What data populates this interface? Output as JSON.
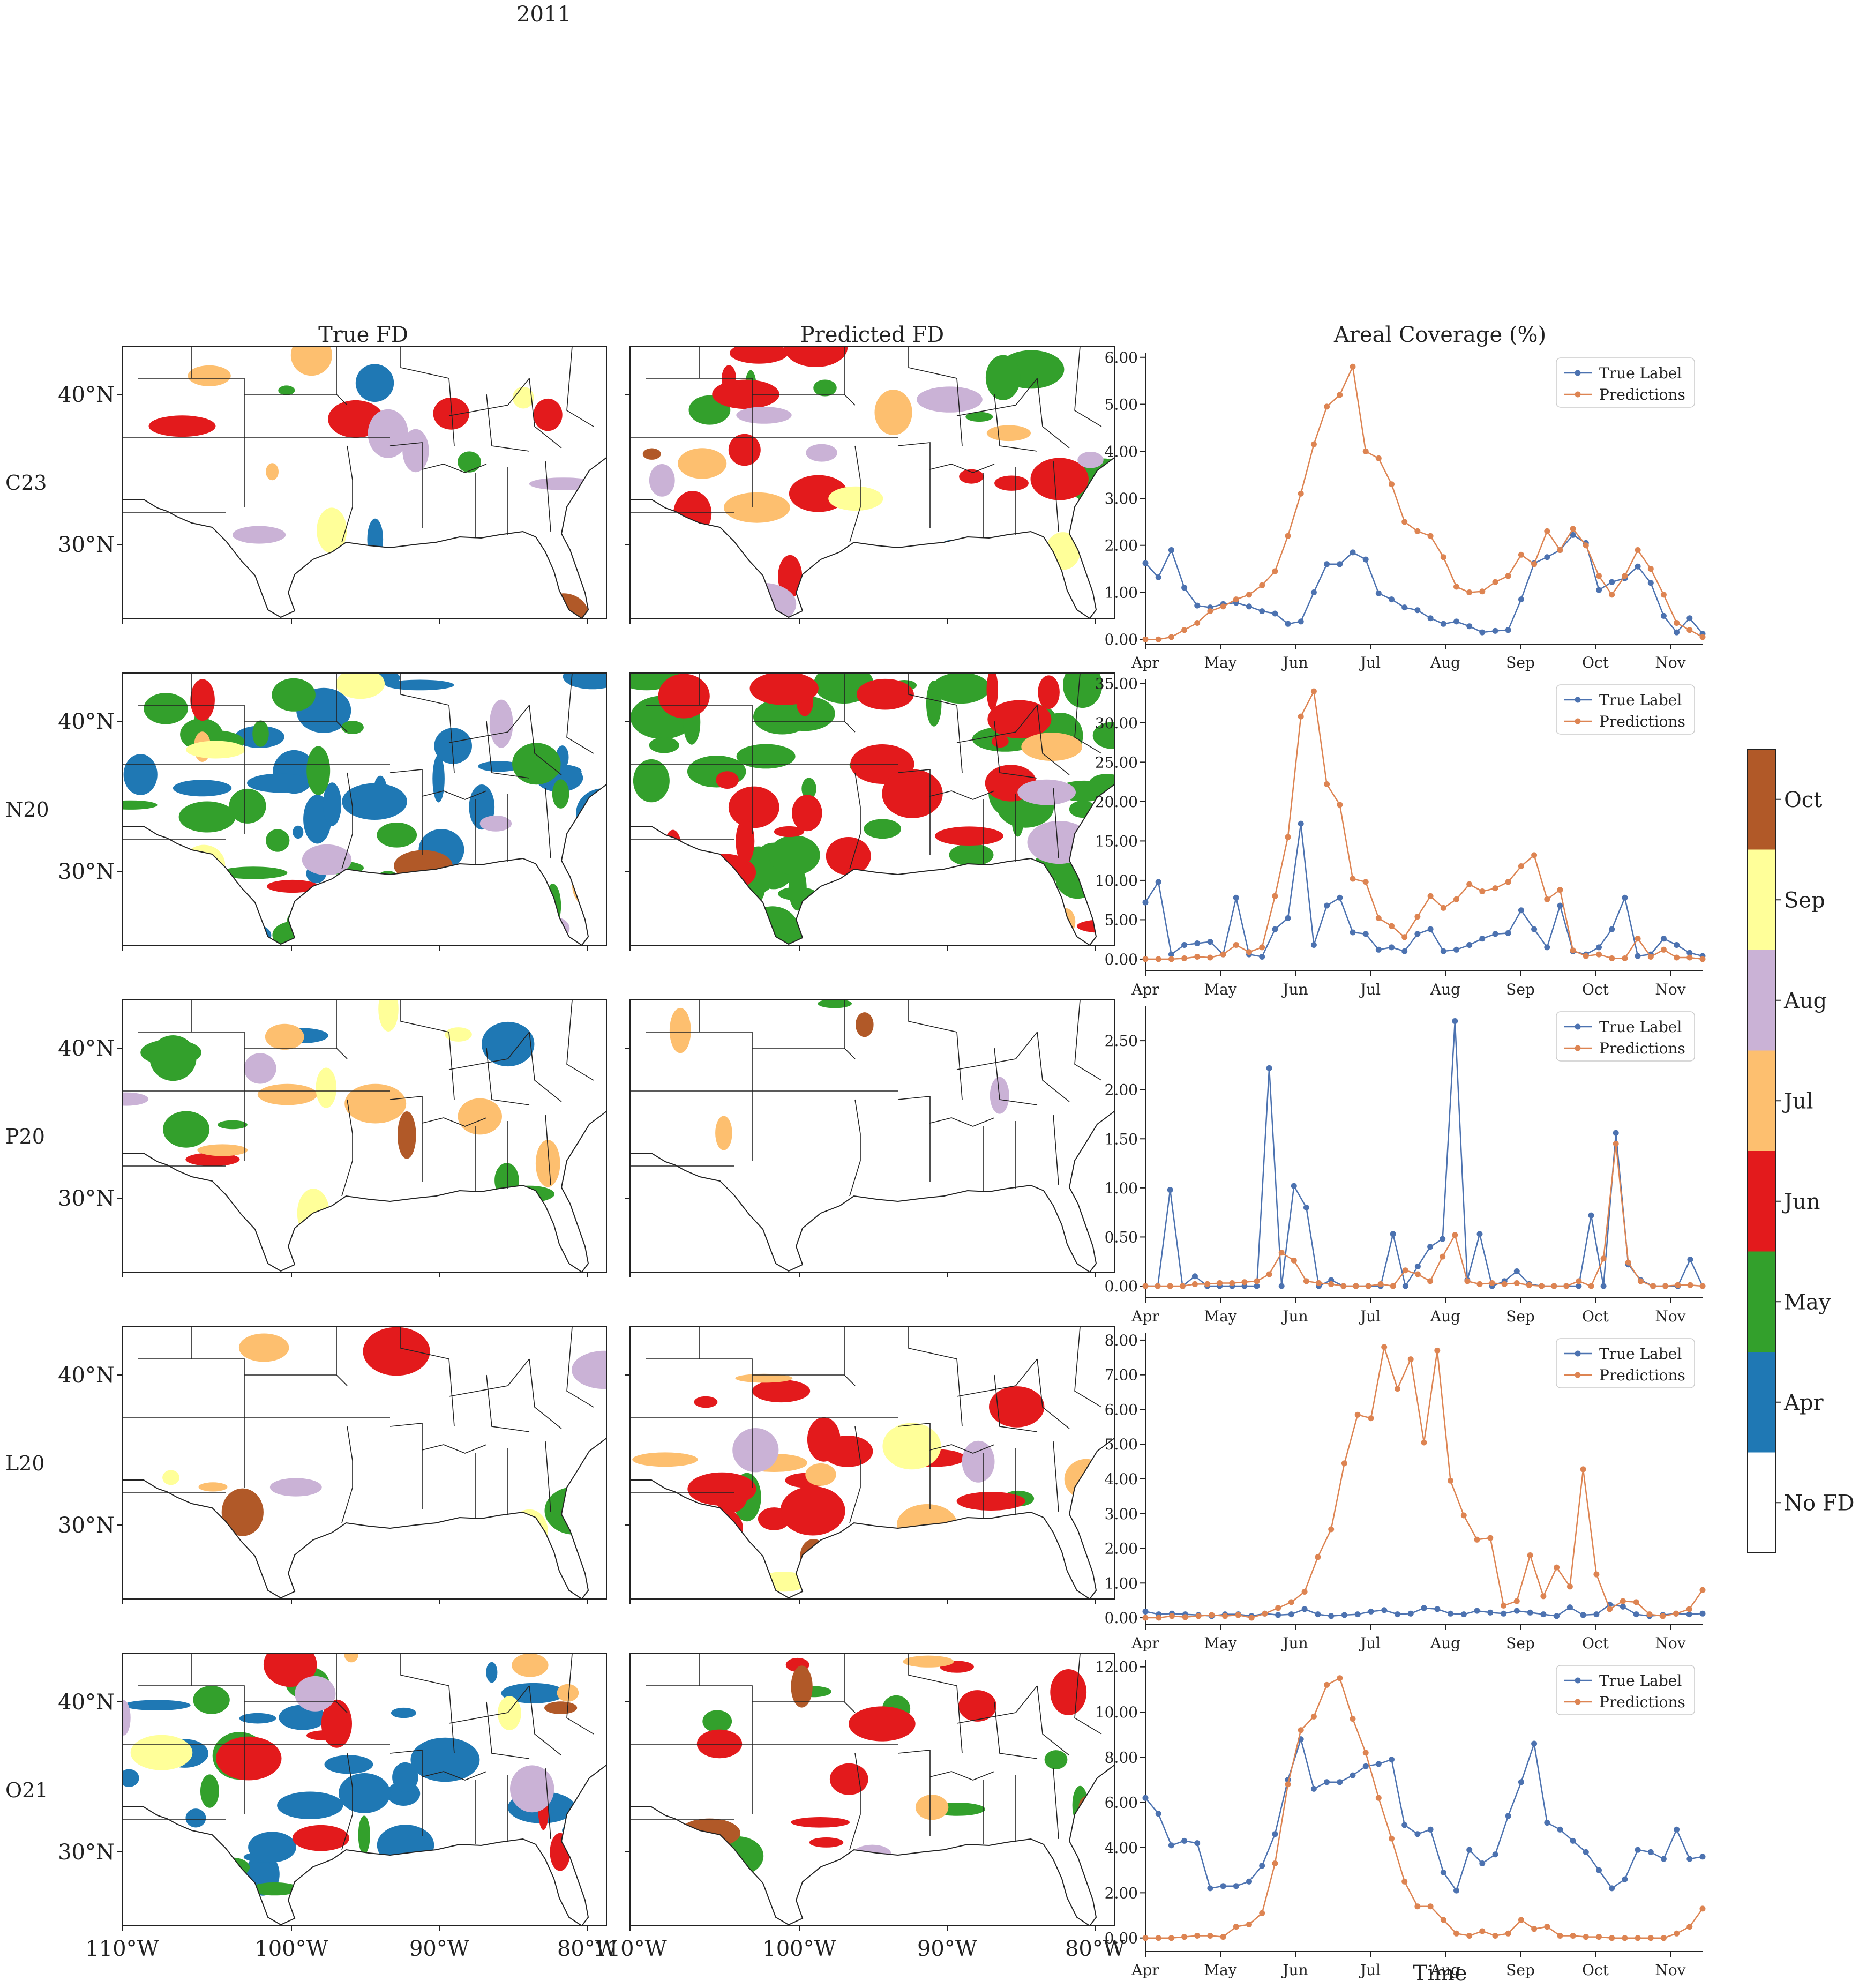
{
  "figure": {
    "year": "2011",
    "col_titles": [
      "True FD",
      "Predicted FD",
      "Areal Coverage (%)"
    ],
    "row_labels": [
      "C23",
      "N20",
      "P20",
      "L20",
      "O21"
    ],
    "lat_labels": [
      "40°N",
      "30°N"
    ],
    "lon_labels": [
      "110°W",
      "100°W",
      "90°W",
      "80°W"
    ],
    "time_xlabel": "Time",
    "month_labels": [
      "Apr",
      "May",
      "Jun",
      "Jul",
      "Aug",
      "Sep",
      "Oct",
      "Nov"
    ],
    "legend_labels": [
      "True Label",
      "Predictions"
    ],
    "colors": {
      "true_label": "#4c72b0",
      "predictions": "#dd8452"
    }
  },
  "colorbar": {
    "labels": [
      "No FD",
      "Apr",
      "May",
      "Jun",
      "Jul",
      "Aug",
      "Sep",
      "Oct"
    ],
    "colors": [
      "#ffffff",
      "#1f78b4",
      "#33a02c",
      "#e31a1c",
      "#fdbf6f",
      "#cab2d6",
      "#ffff99",
      "#b15928"
    ]
  },
  "map_fill": {
    "C23": {
      "true": {
        "Apr": 4,
        "May": 2,
        "Jun": 6,
        "Jul": 3,
        "Aug": 4,
        "Sep": 3,
        "Oct": 1
      },
      "pred": {
        "Apr": 1,
        "May": 8,
        "Jun": 16,
        "Jul": 5,
        "Aug": 6,
        "Sep": 2,
        "Oct": 1
      }
    },
    "N20": {
      "true": {
        "Apr": 32,
        "May": 28,
        "Jun": 3,
        "Jul": 3,
        "Aug": 4,
        "Sep": 4,
        "Oct": 1
      },
      "pred": {
        "Apr": 0,
        "May": 50,
        "Jun": 30,
        "Jul": 3,
        "Aug": 2,
        "Sep": 0,
        "Oct": 0
      }
    },
    "P20": {
      "true": {
        "Apr": 2,
        "May": 8,
        "Jun": 1,
        "Jul": 6,
        "Aug": 3,
        "Sep": 4,
        "Oct": 1
      },
      "pred": {
        "Apr": 0,
        "May": 1,
        "Jun": 0,
        "Jul": 2,
        "Aug": 1,
        "Sep": 0,
        "Oct": 3
      }
    },
    "L20": {
      "true": {
        "Apr": 1,
        "May": 1,
        "Jun": 1,
        "Jul": 3,
        "Aug": 3,
        "Sep": 2,
        "Oct": 1
      },
      "pred": {
        "Apr": 0,
        "May": 2,
        "Jun": 14,
        "Jul": 7,
        "Aug": 2,
        "Sep": 3,
        "Oct": 1
      }
    },
    "O21": {
      "true": {
        "Apr": 28,
        "May": 8,
        "Jun": 9,
        "Jul": 5,
        "Aug": 3,
        "Sep": 4,
        "Oct": 2
      },
      "pred": {
        "Apr": 0,
        "May": 8,
        "Jun": 10,
        "Jul": 2,
        "Aug": 2,
        "Sep": 0,
        "Oct": 3
      }
    }
  },
  "chart_data": [
    {
      "type": "line",
      "row": "C23",
      "title": "Areal Coverage (%)",
      "xlabel": "",
      "ylabel": "",
      "ylim": [
        -0.1,
        6.1
      ],
      "yticks": [
        0,
        1,
        2,
        3,
        4,
        5,
        6
      ],
      "ytick_labels": [
        "0.00",
        "1.00",
        "2.00",
        "3.00",
        "4.00",
        "5.00",
        "6.00"
      ],
      "x_range": [
        0,
        52
      ],
      "xticks": [
        0,
        7,
        14,
        21,
        28,
        35,
        42,
        49
      ],
      "xtick_labels": [
        "Apr",
        "May",
        "Jun",
        "Jul",
        "Aug",
        "Sep",
        "Oct",
        "Nov"
      ],
      "legend_position": "upper right",
      "series": [
        {
          "name": "True Label",
          "values": [
            1.62,
            1.32,
            1.9,
            1.1,
            0.72,
            0.68,
            0.75,
            0.78,
            0.7,
            0.6,
            0.55,
            0.33,
            0.38,
            1.0,
            1.6,
            1.6,
            1.85,
            1.7,
            0.98,
            0.85,
            0.68,
            0.62,
            0.45,
            0.33,
            0.38,
            0.28,
            0.15,
            0.18,
            0.2,
            0.85,
            1.62,
            1.75,
            1.9,
            2.22,
            2.05,
            1.05,
            1.22,
            1.3,
            1.55,
            1.2,
            0.5,
            0.15,
            0.45,
            0.12
          ]
        },
        {
          "name": "Predictions",
          "values": [
            0.0,
            0.0,
            0.05,
            0.2,
            0.35,
            0.6,
            0.7,
            0.85,
            0.95,
            1.15,
            1.45,
            2.2,
            3.1,
            4.15,
            4.95,
            5.2,
            5.8,
            4.0,
            3.85,
            3.3,
            2.5,
            2.3,
            2.2,
            1.75,
            1.12,
            1.0,
            1.02,
            1.22,
            1.35,
            1.8,
            1.6,
            2.3,
            1.9,
            2.35,
            2.0,
            1.35,
            0.95,
            1.35,
            1.9,
            1.5,
            0.95,
            0.35,
            0.2,
            0.05
          ]
        }
      ]
    },
    {
      "type": "line",
      "row": "N20",
      "title": "",
      "xlabel": "",
      "ylabel": "",
      "ylim": [
        -1.5,
        35.5
      ],
      "yticks": [
        0,
        5,
        10,
        15,
        20,
        25,
        30,
        35
      ],
      "ytick_labels": [
        "0.00",
        "5.00",
        "10.00",
        "15.00",
        "20.00",
        "25.00",
        "30.00",
        "35.00"
      ],
      "x_range": [
        0,
        52
      ],
      "xticks": [
        0,
        7,
        14,
        21,
        28,
        35,
        42,
        49
      ],
      "xtick_labels": [
        "Apr",
        "May",
        "Jun",
        "Jul",
        "Aug",
        "Sep",
        "Oct",
        "Nov"
      ],
      "legend_position": "upper right",
      "series": [
        {
          "name": "True Label",
          "values": [
            7.2,
            9.8,
            0.6,
            1.8,
            2.0,
            2.2,
            0.6,
            7.8,
            0.6,
            0.3,
            3.8,
            5.2,
            17.2,
            1.8,
            6.8,
            7.8,
            3.4,
            3.2,
            1.2,
            1.5,
            1.0,
            3.2,
            3.8,
            1.0,
            1.2,
            1.8,
            2.6,
            3.2,
            3.3,
            6.2,
            3.8,
            1.5,
            6.8,
            1.0,
            0.6,
            1.5,
            3.8,
            7.8,
            0.4,
            0.6,
            2.6,
            1.8,
            0.8,
            0.4
          ]
        },
        {
          "name": "Predictions",
          "values": [
            0.0,
            0.0,
            0.0,
            0.1,
            0.3,
            0.2,
            0.6,
            1.8,
            0.9,
            1.5,
            8.0,
            15.5,
            30.8,
            34.0,
            22.2,
            19.6,
            10.2,
            9.8,
            5.2,
            4.2,
            2.8,
            5.4,
            8.0,
            6.5,
            7.6,
            9.5,
            8.6,
            9.0,
            9.8,
            11.8,
            13.2,
            7.6,
            8.8,
            1.1,
            0.4,
            0.6,
            0.1,
            0.1,
            2.6,
            0.3,
            1.2,
            0.2,
            0.2,
            0.0
          ]
        }
      ]
    },
    {
      "type": "line",
      "row": "P20",
      "title": "",
      "xlabel": "",
      "ylabel": "",
      "ylim": [
        -0.12,
        2.85
      ],
      "yticks": [
        0,
        0.5,
        1,
        1.5,
        2,
        2.5
      ],
      "ytick_labels": [
        "0.00",
        "0.50",
        "1.00",
        "1.50",
        "2.00",
        "2.50"
      ],
      "x_range": [
        0,
        52
      ],
      "xticks": [
        0,
        7,
        14,
        21,
        28,
        35,
        42,
        49
      ],
      "xtick_labels": [
        "Apr",
        "May",
        "Jun",
        "Jul",
        "Aug",
        "Sep",
        "Oct",
        "Nov"
      ],
      "legend_position": "upper right",
      "series": [
        {
          "name": "True Label",
          "values": [
            0.0,
            0.0,
            0.98,
            0.0,
            0.1,
            0.0,
            0.0,
            0.0,
            0.0,
            0.0,
            2.22,
            0.0,
            1.02,
            0.8,
            0.0,
            0.06,
            0.0,
            0.0,
            0.0,
            0.0,
            0.53,
            0.0,
            0.2,
            0.4,
            0.48,
            2.7,
            0.06,
            0.53,
            0.0,
            0.05,
            0.15,
            0.02,
            0.0,
            0.0,
            0.0,
            0.0,
            0.72,
            0.0,
            1.56,
            0.22,
            0.06,
            0.0,
            0.0,
            0.0,
            0.27,
            0.0
          ]
        },
        {
          "name": "Predictions",
          "values": [
            0.0,
            0.0,
            0.0,
            0.0,
            0.02,
            0.02,
            0.03,
            0.03,
            0.04,
            0.05,
            0.12,
            0.34,
            0.26,
            0.05,
            0.03,
            0.02,
            0.0,
            0.0,
            0.0,
            0.02,
            0.0,
            0.16,
            0.12,
            0.05,
            0.3,
            0.52,
            0.05,
            0.02,
            0.03,
            0.02,
            0.03,
            0.01,
            0.0,
            0.0,
            0.0,
            0.05,
            0.0,
            0.28,
            1.45,
            0.24,
            0.05,
            0.0,
            0.0,
            0.01,
            0.01,
            0.0
          ]
        }
      ]
    },
    {
      "type": "line",
      "row": "L20",
      "title": "",
      "xlabel": "",
      "ylabel": "",
      "ylim": [
        -0.2,
        8.2
      ],
      "yticks": [
        0,
        1,
        2,
        3,
        4,
        5,
        6,
        7,
        8
      ],
      "ytick_labels": [
        "0.00",
        "1.00",
        "2.00",
        "3.00",
        "4.00",
        "5.00",
        "6.00",
        "7.00",
        "8.00"
      ],
      "x_range": [
        0,
        52
      ],
      "xticks": [
        0,
        7,
        14,
        21,
        28,
        35,
        42,
        49
      ],
      "xtick_labels": [
        "Apr",
        "May",
        "Jun",
        "Jul",
        "Aug",
        "Sep",
        "Oct",
        "Nov"
      ],
      "legend_position": "upper right",
      "series": [
        {
          "name": "True Label",
          "values": [
            0.18,
            0.1,
            0.12,
            0.1,
            0.08,
            0.05,
            0.1,
            0.1,
            0.05,
            0.12,
            0.08,
            0.1,
            0.25,
            0.1,
            0.05,
            0.08,
            0.1,
            0.18,
            0.22,
            0.1,
            0.12,
            0.28,
            0.25,
            0.12,
            0.1,
            0.2,
            0.15,
            0.12,
            0.2,
            0.15,
            0.1,
            0.05,
            0.3,
            0.08,
            0.1,
            0.38,
            0.32,
            0.1,
            0.05,
            0.08,
            0.12,
            0.1,
            0.12
          ]
        },
        {
          "name": "Predictions",
          "values": [
            0.0,
            0.0,
            0.05,
            0.02,
            0.05,
            0.08,
            0.05,
            0.08,
            0.0,
            0.12,
            0.28,
            0.45,
            0.75,
            1.75,
            2.55,
            4.45,
            5.85,
            5.75,
            7.8,
            6.6,
            7.45,
            5.05,
            7.7,
            3.95,
            2.95,
            2.25,
            2.3,
            0.35,
            0.48,
            1.8,
            0.62,
            1.45,
            0.9,
            4.28,
            1.25,
            0.25,
            0.48,
            0.45,
            0.1,
            0.05,
            0.12,
            0.25,
            0.8
          ]
        }
      ]
    },
    {
      "type": "line",
      "row": "O21",
      "title": "",
      "xlabel": "Time",
      "ylabel": "",
      "ylim": [
        -0.6,
        12.3
      ],
      "yticks": [
        0,
        2,
        4,
        6,
        8,
        10,
        12
      ],
      "ytick_labels": [
        "0.00",
        "2.00",
        "4.00",
        "6.00",
        "8.00",
        "10.00",
        "12.00"
      ],
      "x_range": [
        0,
        52
      ],
      "xticks": [
        0,
        7,
        14,
        21,
        28,
        35,
        42,
        49
      ],
      "xtick_labels": [
        "Apr",
        "May",
        "Jun",
        "Jul",
        "Aug",
        "Sep",
        "Oct",
        "Nov"
      ],
      "legend_position": "upper right",
      "series": [
        {
          "name": "True Label",
          "values": [
            6.2,
            5.5,
            4.1,
            4.3,
            4.2,
            2.2,
            2.3,
            2.3,
            2.5,
            3.2,
            4.6,
            7.0,
            8.8,
            6.6,
            6.9,
            6.9,
            7.2,
            7.6,
            7.7,
            7.9,
            5.0,
            4.6,
            4.8,
            2.9,
            2.1,
            3.9,
            3.3,
            3.7,
            5.4,
            6.9,
            8.6,
            5.1,
            4.8,
            4.3,
            3.8,
            3.0,
            2.2,
            2.6,
            3.9,
            3.8,
            3.5,
            4.8,
            3.5,
            3.6
          ]
        },
        {
          "name": "Predictions",
          "values": [
            0.0,
            0.0,
            0.0,
            0.05,
            0.1,
            0.1,
            0.05,
            0.5,
            0.6,
            1.1,
            3.3,
            6.8,
            9.2,
            9.8,
            11.2,
            11.5,
            9.7,
            8.2,
            6.2,
            4.4,
            2.5,
            1.4,
            1.4,
            0.8,
            0.2,
            0.1,
            0.3,
            0.1,
            0.2,
            0.8,
            0.4,
            0.5,
            0.1,
            0.1,
            0.05,
            0.05,
            0.0,
            0.0,
            0.0,
            0.0,
            0.0,
            0.2,
            0.5,
            1.3
          ]
        }
      ]
    }
  ]
}
